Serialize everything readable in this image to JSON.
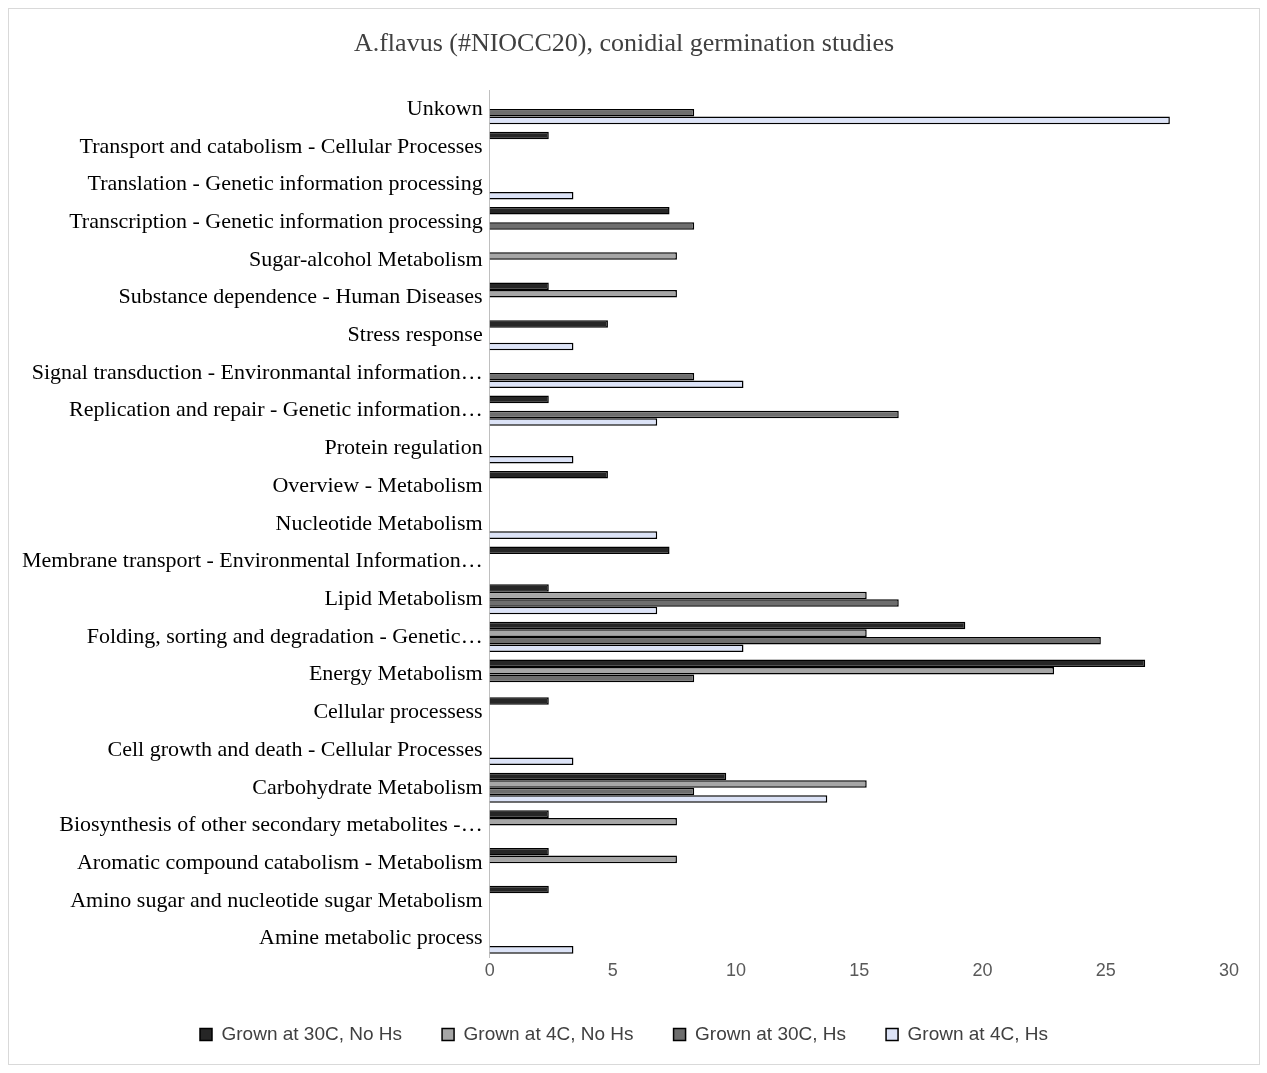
{
  "chart_data": {
    "type": "bar",
    "orientation": "horizontal",
    "title": "A.flavus (#NIOCC20), conidial germination studies",
    "categories": [
      "Unkown",
      "Transport and catabolism - Cellular Processes",
      "Translation - Genetic information processing",
      "Transcription - Genetic information processing",
      "Sugar-alcohol Metabolism",
      "Substance dependence - Human Diseases",
      "Stress response",
      "Signal transduction - Environmantal information…",
      "Replication and repair - Genetic information…",
      "Protein regulation",
      "Overview - Metabolism",
      "Nucleotide Metabolism",
      "Membrane transport - Environmental Information…",
      "Lipid Metabolism",
      "Folding, sorting and degradation - Genetic…",
      "Energy Metabolism",
      "Cellular processess",
      "Cell growth and death - Cellular Processes",
      "Carbohydrate Metabolism",
      "Biosynthesis of other secondary metabolites -…",
      "Aromatic compound catabolism - Metabolism",
      "Amino sugar and nucleotide sugar Metabolism",
      "Amine metabolic process"
    ],
    "series": [
      {
        "name": "Grown at 30C, No Hs",
        "color": "#262626",
        "values": [
          null,
          2.4,
          null,
          7.3,
          null,
          2.4,
          4.8,
          null,
          2.4,
          null,
          4.8,
          null,
          7.3,
          2.4,
          19.3,
          26.6,
          2.4,
          null,
          9.6,
          2.4,
          2.4,
          2.4,
          null
        ]
      },
      {
        "name": "Grown at 4C, No Hs",
        "color": "#a6a6a6",
        "values": [
          null,
          null,
          null,
          null,
          7.6,
          7.6,
          null,
          null,
          null,
          null,
          null,
          null,
          null,
          15.3,
          15.3,
          22.9,
          null,
          null,
          15.3,
          7.6,
          7.6,
          null,
          null
        ]
      },
      {
        "name": "Grown at 30C, Hs",
        "color": "#6e6e6e",
        "values": [
          8.3,
          null,
          null,
          8.3,
          null,
          null,
          null,
          8.3,
          16.6,
          null,
          null,
          null,
          null,
          16.6,
          24.8,
          8.3,
          null,
          null,
          8.3,
          null,
          null,
          null,
          null
        ]
      },
      {
        "name": "Grown at 4C, Hs",
        "color": "#dce3f7",
        "values": [
          27.6,
          null,
          3.4,
          null,
          null,
          null,
          3.4,
          10.3,
          6.8,
          3.4,
          null,
          6.8,
          null,
          6.8,
          10.3,
          null,
          null,
          3.4,
          13.7,
          null,
          null,
          null,
          3.4
        ]
      }
    ],
    "xlim": [
      0,
      30
    ],
    "xticks": [
      0,
      5,
      10,
      15,
      20,
      25,
      30
    ],
    "grid": false,
    "legend": "bottom"
  }
}
